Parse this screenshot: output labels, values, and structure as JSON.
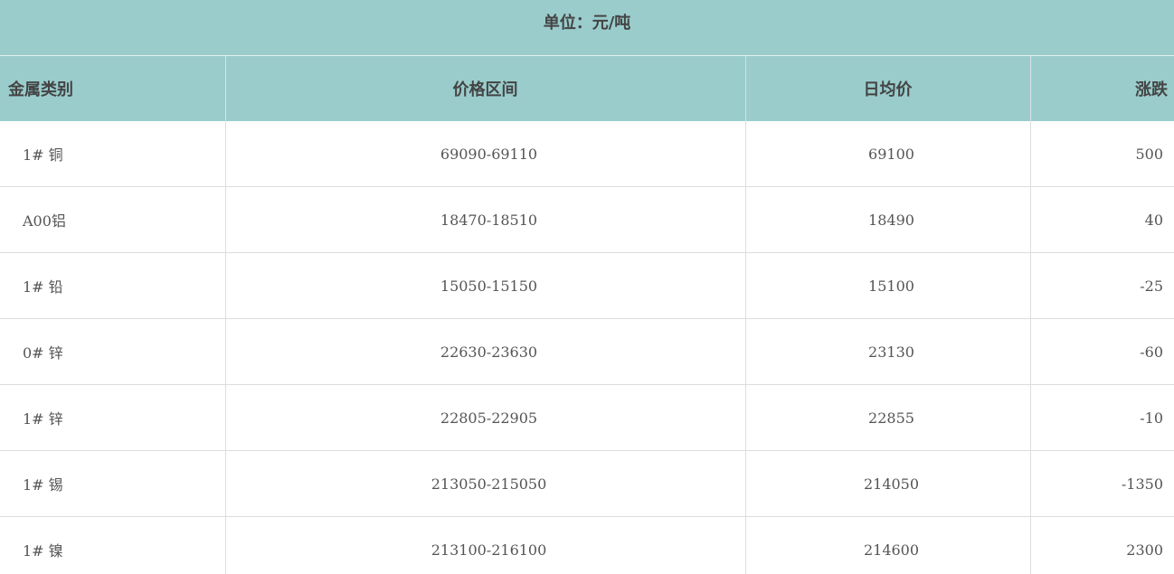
{
  "title": "单位：元/吨",
  "columns": [
    "金属类别",
    "价格区间",
    "日均价",
    "涨跌"
  ],
  "rows": [
    {
      "metal": "1# 铜",
      "range": "69090-69110",
      "avg": "69100",
      "change": "500"
    },
    {
      "metal": "A00铝",
      "range": "18470-18510",
      "avg": "18490",
      "change": "40"
    },
    {
      "metal": "1# 铅",
      "range": "15050-15150",
      "avg": "15100",
      "change": "-25"
    },
    {
      "metal": "0# 锌",
      "range": "22630-23630",
      "avg": "23130",
      "change": "-60"
    },
    {
      "metal": "1# 锌",
      "range": "22805-22905",
      "avg": "22855",
      "change": "-10"
    },
    {
      "metal": "1# 锡",
      "range": "213050-215050",
      "avg": "214050",
      "change": "-1350"
    },
    {
      "metal": "1# 镍",
      "range": "213100-216100",
      "avg": "214600",
      "change": "2300"
    }
  ],
  "colors": {
    "header_bg": "#9acccc",
    "text": "#444444"
  }
}
